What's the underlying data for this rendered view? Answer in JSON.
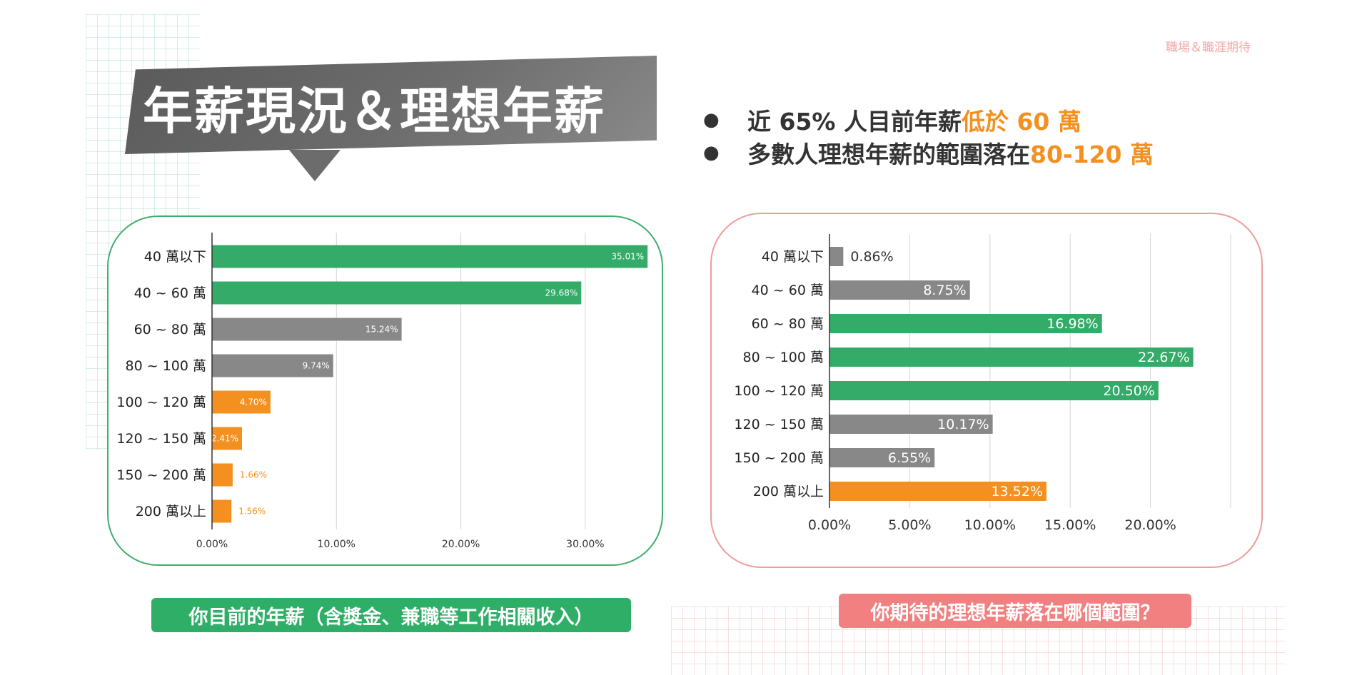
{
  "corner_label": "職場＆職涯期待",
  "title": "年薪現況＆理想年薪",
  "bullets": [
    {
      "prefix": "近 65% 人目前年薪",
      "highlight": "低於 60 萬"
    },
    {
      "prefix": "多數人理想年薪的範圍落在 ",
      "highlight": "80-120 萬"
    }
  ],
  "colors": {
    "green": "#34ab68",
    "gray": "#888888",
    "orange": "#f3901f",
    "pink": "#f28080"
  },
  "captions": {
    "left": "你目前的年薪（含獎金、兼職等工作相關收入）",
    "right": "你期待的理想年薪落在哪個範圍？"
  },
  "chart_data": [
    {
      "type": "bar",
      "orientation": "horizontal",
      "categories": [
        "40 萬以下",
        "40 ~ 60 萬",
        "60 ~ 80 萬",
        "80 ~ 100 萬",
        "100 ~ 120 萬",
        "120 ~ 150 萬",
        "150 ~ 200 萬",
        "200 萬以上"
      ],
      "values": [
        35.01,
        29.68,
        15.24,
        9.74,
        4.7,
        2.41,
        1.66,
        1.56
      ],
      "value_labels": [
        "35.01%",
        "29.68%",
        "15.24%",
        "9.74%",
        "4.70%",
        "2.41%",
        "1.66%",
        "1.56%"
      ],
      "bar_colors": [
        "green",
        "green",
        "gray",
        "gray",
        "orange",
        "orange",
        "orange",
        "orange"
      ],
      "xlim": [
        0,
        35
      ],
      "xticks": [
        0,
        10,
        20,
        30
      ],
      "xtick_labels": [
        "0.00%",
        "10.00%",
        "20.00%",
        "30.00%"
      ],
      "grid": true
    },
    {
      "type": "bar",
      "orientation": "horizontal",
      "categories": [
        "40 萬以下",
        "40 ~ 60 萬",
        "60 ~ 80 萬",
        "80 ~ 100 萬",
        "100 ~ 120 萬",
        "120 ~ 150 萬",
        "150 ~ 200 萬",
        "200 萬以上"
      ],
      "values": [
        0.86,
        8.75,
        16.98,
        22.67,
        20.5,
        10.17,
        6.55,
        13.52
      ],
      "value_labels": [
        "0.86%",
        "8.75%",
        "16.98%",
        "22.67%",
        "20.50%",
        "10.17%",
        "6.55%",
        "13.52%"
      ],
      "bar_colors": [
        "gray",
        "gray",
        "green",
        "green",
        "green",
        "gray",
        "gray",
        "orange"
      ],
      "xlim": [
        0,
        25
      ],
      "xticks": [
        0,
        5,
        10,
        15,
        20,
        25
      ],
      "xtick_labels": [
        "0.00%",
        "5.00%",
        "10.00%",
        "15.00%",
        "20.00%",
        ""
      ],
      "grid": true
    }
  ]
}
